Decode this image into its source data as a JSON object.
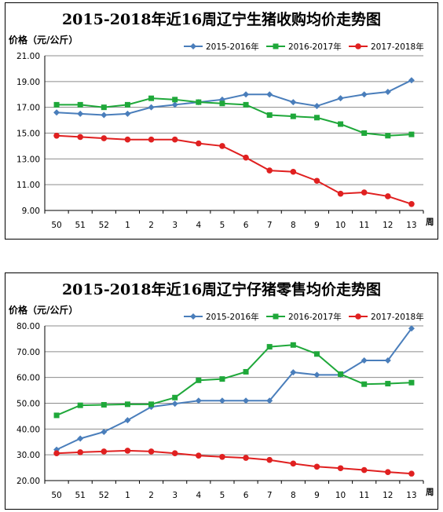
{
  "chart_data": [
    {
      "type": "line",
      "title": "2015-2018年近16周辽宁生猪收购均价走势图",
      "ylabel": "价格（元/公斤）",
      "xlabel": "周",
      "categories": [
        "50",
        "51",
        "52",
        "1",
        "2",
        "3",
        "4",
        "5",
        "6",
        "7",
        "8",
        "9",
        "10",
        "11",
        "12",
        "13"
      ],
      "ylim": [
        9,
        21
      ],
      "yticks": [
        "9.00",
        "11.00",
        "13.00",
        "15.00",
        "17.00",
        "19.00",
        "21.00"
      ],
      "grid": true,
      "legend_position": "top-right",
      "series": [
        {
          "name": "2015-2016年",
          "color": "#4A7EBB",
          "marker": "diamond",
          "values": [
            16.6,
            16.5,
            16.4,
            16.5,
            17.0,
            17.2,
            17.4,
            17.6,
            18.0,
            18.0,
            17.4,
            17.1,
            17.7,
            18.0,
            18.2,
            19.1
          ]
        },
        {
          "name": "2016-2017年",
          "color": "#1FA83A",
          "marker": "square",
          "values": [
            17.2,
            17.2,
            17.0,
            17.2,
            17.7,
            17.6,
            17.4,
            17.3,
            17.2,
            16.4,
            16.3,
            16.2,
            15.7,
            15.0,
            14.8,
            14.9
          ]
        },
        {
          "name": "2017-2018年",
          "color": "#E02020",
          "marker": "circle",
          "values": [
            14.8,
            14.7,
            14.6,
            14.5,
            14.5,
            14.5,
            14.2,
            14.0,
            13.1,
            12.1,
            12.0,
            11.3,
            10.3,
            10.4,
            10.1,
            9.5
          ]
        }
      ]
    },
    {
      "type": "line",
      "title": "2015-2018年近16周辽宁仔猪零售均价走势图",
      "ylabel": "价格（元/公斤）",
      "xlabel": "周",
      "categories": [
        "50",
        "51",
        "52",
        "1",
        "2",
        "3",
        "4",
        "5",
        "6",
        "7",
        "8",
        "9",
        "10",
        "11",
        "12",
        "13"
      ],
      "ylim": [
        20,
        80
      ],
      "yticks": [
        "20.00",
        "30.00",
        "40.00",
        "50.00",
        "60.00",
        "70.00",
        "80.00"
      ],
      "grid": true,
      "legend_position": "top-right",
      "series": [
        {
          "name": "2015-2016年",
          "color": "#4A7EBB",
          "marker": "diamond",
          "values": [
            32.0,
            36.3,
            38.9,
            43.4,
            48.6,
            49.8,
            51.0,
            51.0,
            51.0,
            51.0,
            62.0,
            61.0,
            61.0,
            66.6,
            66.6,
            79.0
          ]
        },
        {
          "name": "2016-2017年",
          "color": "#1FA83A",
          "marker": "square",
          "values": [
            45.3,
            49.2,
            49.4,
            49.6,
            49.6,
            52.2,
            58.9,
            59.4,
            62.2,
            71.9,
            72.6,
            69.1,
            61.3,
            57.4,
            57.6,
            58.0
          ]
        },
        {
          "name": "2017-2018年",
          "color": "#E02020",
          "marker": "circle",
          "values": [
            30.6,
            31.0,
            31.3,
            31.6,
            31.3,
            30.6,
            29.7,
            29.2,
            28.8,
            28.0,
            26.6,
            25.4,
            24.8,
            24.1,
            23.3,
            22.7
          ]
        }
      ]
    }
  ]
}
